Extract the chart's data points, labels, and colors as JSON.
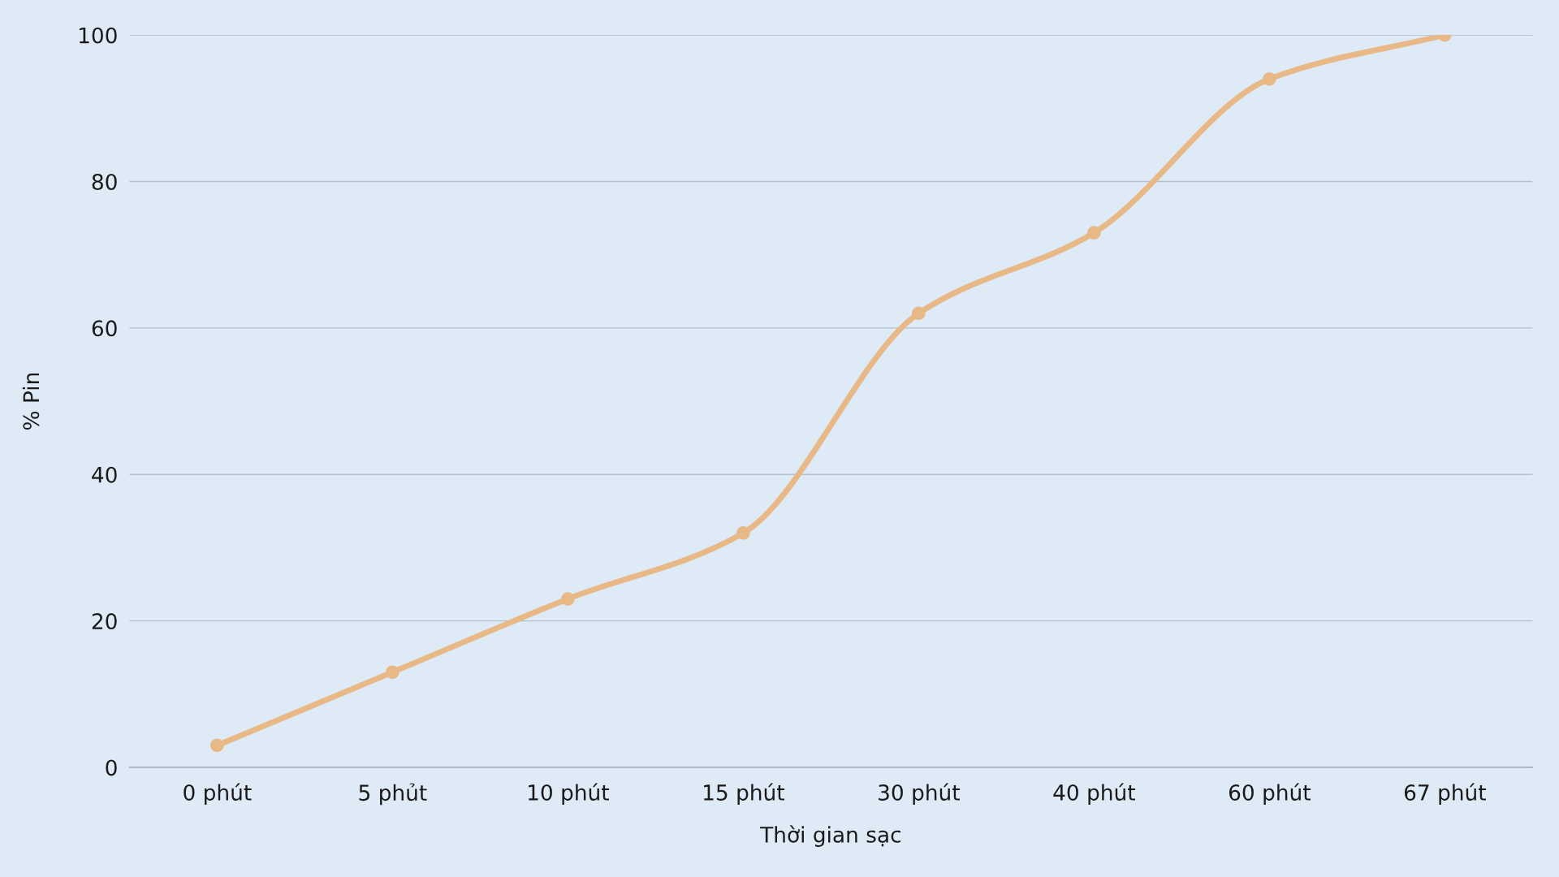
{
  "chart_data": {
    "type": "line",
    "xlabel": "Thời gian sạc",
    "ylabel": "% Pin",
    "categories": [
      "0 phút",
      "5 phủt",
      "10 phút",
      "15 phút",
      "30 phút",
      "40 phút",
      "60 phút",
      "67 phút"
    ],
    "series": [
      {
        "color": "#e8b987",
        "values": [
          3,
          13,
          23,
          32,
          62,
          73,
          94,
          100
        ]
      }
    ],
    "ylim": [
      0,
      100
    ],
    "yticks": [
      0,
      20,
      40,
      60,
      80,
      100
    ],
    "grid": "y",
    "marker": "circle",
    "line_style": "solid",
    "legend": false
  }
}
